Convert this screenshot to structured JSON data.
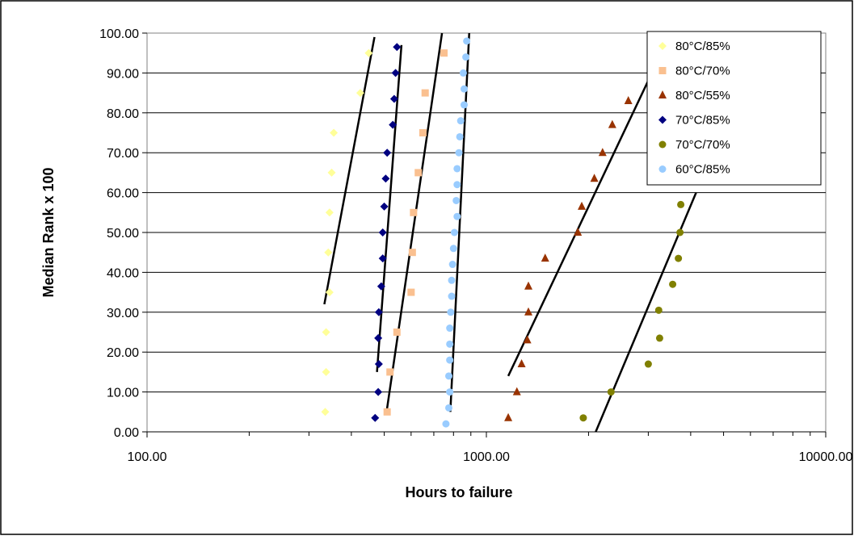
{
  "chart_data": {
    "type": "scatter",
    "title": "",
    "xlabel": "Hours to failure",
    "ylabel": "Median Rank x 100",
    "xscale": "log",
    "xlim": [
      100,
      10000
    ],
    "ylim": [
      0,
      100
    ],
    "x_ticks": [
      "100.00",
      "1000.00",
      "10000.00"
    ],
    "y_ticks": [
      "0.00",
      "10.00",
      "20.00",
      "30.00",
      "40.00",
      "50.00",
      "60.00",
      "70.00",
      "80.00",
      "90.00",
      "100.00"
    ],
    "grid": "horizontal",
    "legend_position": "top-right",
    "series": [
      {
        "name": "80°C/85%",
        "color": "#ffff99",
        "marker": "diamond",
        "points": [
          [
            335,
            5
          ],
          [
            337,
            15
          ],
          [
            337,
            25
          ],
          [
            345,
            35
          ],
          [
            342,
            45
          ],
          [
            345,
            55
          ],
          [
            350,
            65
          ],
          [
            355,
            75
          ],
          [
            425,
            85
          ],
          [
            450,
            95
          ]
        ],
        "fit_line": [
          [
            333,
            32
          ],
          [
            468,
            99
          ]
        ]
      },
      {
        "name": "80°C/70%",
        "color": "#fac090",
        "marker": "square",
        "points": [
          [
            510,
            5
          ],
          [
            520,
            15
          ],
          [
            545,
            25
          ],
          [
            600,
            35
          ],
          [
            605,
            45
          ],
          [
            610,
            55
          ],
          [
            630,
            65
          ],
          [
            650,
            75
          ],
          [
            660,
            85
          ],
          [
            750,
            95
          ]
        ],
        "fit_line": [
          [
            508,
            5
          ],
          [
            740,
            100
          ]
        ]
      },
      {
        "name": "80°C/55%",
        "color": "#993300",
        "marker": "triangle",
        "points": [
          [
            1160,
            3.5
          ],
          [
            1230,
            10
          ],
          [
            1270,
            17
          ],
          [
            1320,
            23
          ],
          [
            1330,
            30
          ],
          [
            1330,
            36.5
          ],
          [
            1490,
            43.5
          ],
          [
            1860,
            50
          ],
          [
            1910,
            56.5
          ],
          [
            2080,
            63.5
          ],
          [
            2200,
            70
          ],
          [
            2350,
            77
          ],
          [
            2620,
            83
          ],
          [
            3140,
            90
          ]
        ],
        "fit_line": [
          [
            1160,
            14
          ],
          [
            3450,
            99
          ]
        ]
      },
      {
        "name": "70°C/85%",
        "color": "#000080",
        "marker": "diamond",
        "points": [
          [
            470,
            3.5
          ],
          [
            480,
            10
          ],
          [
            482,
            17
          ],
          [
            480,
            23.5
          ],
          [
            482,
            30
          ],
          [
            490,
            36.5
          ],
          [
            495,
            43.5
          ],
          [
            495,
            50
          ],
          [
            500,
            56.5
          ],
          [
            505,
            63.5
          ],
          [
            510,
            70
          ],
          [
            530,
            77
          ],
          [
            535,
            83.5
          ],
          [
            540,
            90
          ],
          [
            545,
            96.5
          ]
        ],
        "fit_line": [
          [
            476,
            15
          ],
          [
            562,
            97
          ]
        ]
      },
      {
        "name": "70°C/70%",
        "color": "#808000",
        "marker": "circle",
        "points": [
          [
            1930,
            3.5
          ],
          [
            2330,
            10
          ],
          [
            3000,
            17
          ],
          [
            3240,
            23.5
          ],
          [
            3220,
            30.5
          ],
          [
            3540,
            37
          ],
          [
            3680,
            43.5
          ],
          [
            3720,
            50
          ],
          [
            3740,
            57
          ]
        ],
        "fit_line": [
          [
            2100,
            0
          ],
          [
            4150,
            60
          ]
        ]
      },
      {
        "name": "60°C/85%",
        "color": "#99ccff",
        "marker": "circle",
        "points": [
          [
            760,
            2
          ],
          [
            775,
            6
          ],
          [
            780,
            10
          ],
          [
            775,
            14
          ],
          [
            780,
            18
          ],
          [
            780,
            22
          ],
          [
            780,
            26
          ],
          [
            785,
            30
          ],
          [
            790,
            34
          ],
          [
            790,
            38
          ],
          [
            795,
            42
          ],
          [
            800,
            46
          ],
          [
            805,
            50
          ],
          [
            820,
            54
          ],
          [
            815,
            58
          ],
          [
            820,
            62
          ],
          [
            820,
            66
          ],
          [
            830,
            70
          ],
          [
            835,
            74
          ],
          [
            840,
            78
          ],
          [
            860,
            82
          ],
          [
            860,
            86
          ],
          [
            855,
            90
          ],
          [
            870,
            94
          ],
          [
            875,
            98
          ]
        ],
        "fit_line": [
          [
            783,
            5
          ],
          [
            890,
            100
          ]
        ]
      }
    ]
  }
}
